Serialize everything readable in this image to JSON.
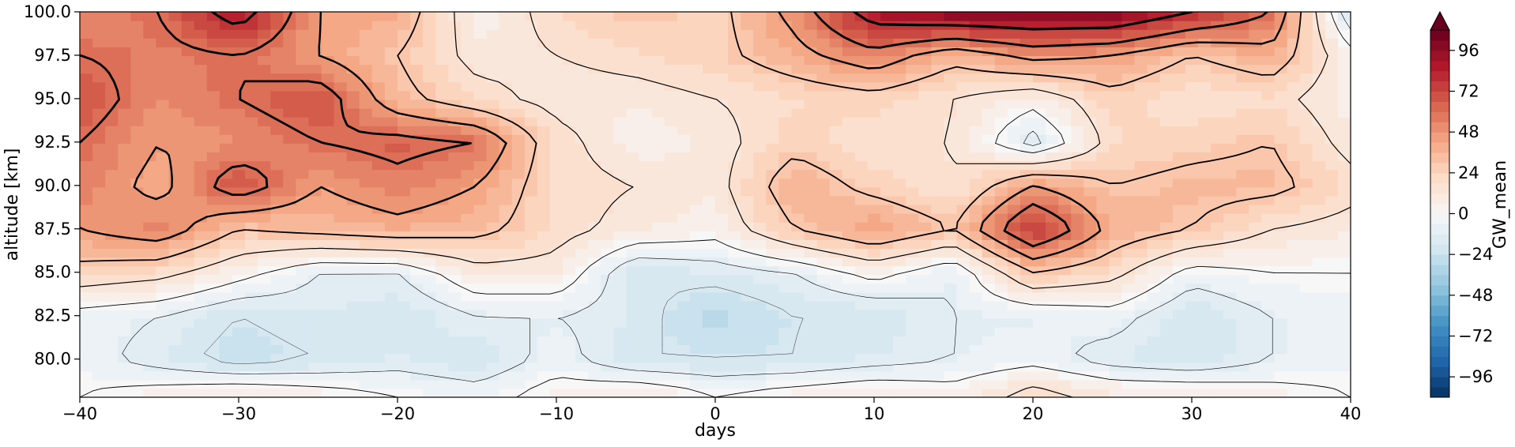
{
  "chart_data": {
    "type": "heatmap",
    "title": "",
    "xlabel": "days",
    "ylabel": "altitude [km]",
    "colorbar_label": "GW_mean",
    "xlim": [
      -40,
      40
    ],
    "ylim": [
      77.8,
      100.0
    ],
    "x_ticks": [
      -40,
      -30,
      -20,
      -10,
      0,
      10,
      20,
      30,
      40
    ],
    "x_tick_labels": [
      "−40",
      "−30",
      "−20",
      "−10",
      "0",
      "10",
      "20",
      "30",
      "40"
    ],
    "y_ticks": [
      80.0,
      82.5,
      85.0,
      87.5,
      90.0,
      92.5,
      95.0,
      97.5,
      100.0
    ],
    "y_tick_labels": [
      "80.0",
      "82.5",
      "85.0",
      "87.5",
      "90.0",
      "92.5",
      "95.0",
      "97.5",
      "100.0"
    ],
    "colorbar_ticks": [
      -96,
      -72,
      -48,
      -24,
      0,
      24,
      48,
      72,
      96
    ],
    "colorbar_tick_labels": [
      "−96",
      "−72",
      "−48",
      "−24",
      "0",
      "24",
      "48",
      "72",
      "96"
    ],
    "colorbar_range": [
      -108,
      108
    ],
    "colorbar_extend": "max",
    "colormap": "RdBu_r",
    "colormap_stops": [
      "#053061",
      "#2166ac",
      "#4393c3",
      "#92c5de",
      "#d1e5f0",
      "#f7f7f7",
      "#fddbc7",
      "#f4a582",
      "#d6604d",
      "#b2182b",
      "#67001f"
    ],
    "grid": false,
    "x": [
      -40,
      -35,
      -30,
      -25,
      -20,
      -15,
      -10,
      -5,
      0,
      5,
      10,
      15,
      20,
      25,
      30,
      35,
      40
    ],
    "y": [
      78,
      80,
      82.5,
      85,
      87.5,
      90,
      92.5,
      95,
      97.5,
      100
    ],
    "z": [
      [
        0,
        5,
        10,
        5,
        0,
        -5,
        5,
        10,
        0,
        5,
        10,
        5,
        20,
        10,
        10,
        5,
        0
      ],
      [
        -5,
        -15,
        -25,
        -20,
        -15,
        -20,
        -5,
        -20,
        -20,
        -20,
        -15,
        -10,
        -5,
        -15,
        -20,
        -10,
        -5
      ],
      [
        -5,
        -10,
        -20,
        -15,
        -20,
        -10,
        -10,
        -15,
        -30,
        -20,
        -20,
        -10,
        -10,
        -5,
        -20,
        -10,
        -5
      ],
      [
        25,
        20,
        5,
        -10,
        -10,
        10,
        10,
        -20,
        -15,
        -10,
        5,
        -10,
        30,
        20,
        -5,
        0,
        0
      ],
      [
        45,
        55,
        30,
        35,
        40,
        35,
        20,
        10,
        5,
        30,
        45,
        30,
        80,
        40,
        30,
        15,
        10
      ],
      [
        55,
        40,
        70,
        45,
        55,
        45,
        20,
        15,
        10,
        40,
        25,
        15,
        45,
        30,
        35,
        35,
        20
      ],
      [
        60,
        45,
        50,
        60,
        65,
        60,
        20,
        5,
        10,
        25,
        15,
        15,
        -15,
        20,
        25,
        30,
        10
      ],
      [
        70,
        50,
        60,
        70,
        35,
        20,
        10,
        10,
        15,
        20,
        25,
        15,
        5,
        25,
        15,
        20,
        5
      ],
      [
        60,
        55,
        60,
        45,
        30,
        10,
        15,
        20,
        25,
        40,
        55,
        35,
        50,
        45,
        30,
        40,
        5
      ],
      [
        50,
        60,
        90,
        45,
        40,
        5,
        20,
        30,
        25,
        50,
        90,
        100,
        100,
        100,
        80,
        60,
        -20
      ]
    ],
    "contour_levels": [
      {
        "level": -20,
        "width": 0.4
      },
      {
        "level": -10,
        "width": 0.6
      },
      {
        "level": 0,
        "width": 0.9
      },
      {
        "level": 15,
        "width": 1.2
      },
      {
        "level": 30,
        "width": 1.8
      },
      {
        "level": 45,
        "width": 2.4
      },
      {
        "level": 60,
        "width": 2.8
      },
      {
        "level": 80,
        "width": 3.2
      }
    ]
  }
}
